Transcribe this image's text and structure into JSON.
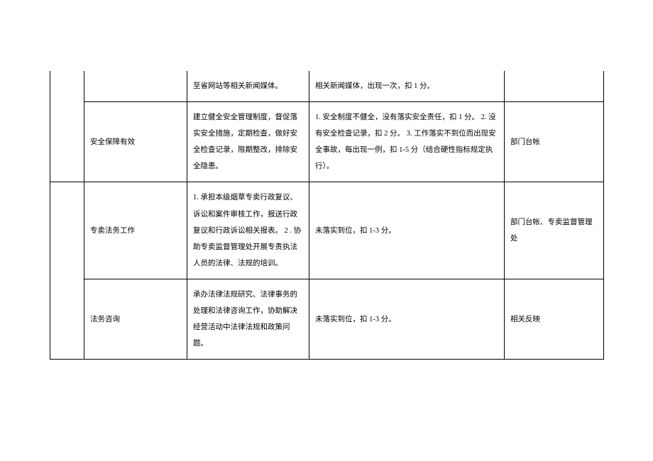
{
  "rows": [
    {
      "c1": "",
      "c2": "至省网站等相关新闻媒体。",
      "c3": "相关新闻媒体，出现一次，扣 1 分。",
      "c4": ""
    },
    {
      "c1": "安全保障有效",
      "c2": "建立健全安全管理制度，督促落实安全措施，定期检查，做好安全检查记录，限期整改，排除安全隐患。",
      "c3": "1. 安全制度不健全，没有落实安全责任，扣 1 分。\n2. 没有安全检查记录，扣 2 分。\n3. 工作落实不到位而出现安全事故，每出现一例，扣 1-5 分（结合硬性指标规定执行）。",
      "c4": "部门台帐"
    },
    {
      "c1": "专卖法务工作",
      "c2": "1. 承担本级烟草专卖行政复议、诉讼和案件审核工作，报送行政复议和行政诉讼相关报表。\n2 . 协助专卖监督管理处开展专责执法人员的法律、法规的培训。",
      "c3": "未落实到位，扣 1-3 分。",
      "c4": "部门台帐、专卖监督管理处"
    },
    {
      "c1": "法务咨询",
      "c2": "承办法律法规研究、法律事务的处理和法律咨询工作，协助解决经营活动中法律法规和政策问题。",
      "c3": "未落实到位，扣 1-3 分。",
      "c4": "相关反映"
    }
  ]
}
